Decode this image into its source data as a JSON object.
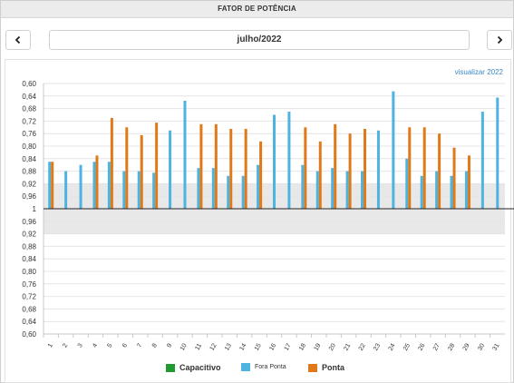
{
  "header": {
    "title": "FATOR DE POTÊNCIA"
  },
  "nav": {
    "month_label": "julho/2022"
  },
  "link": {
    "view_year": "visualizar 2022"
  },
  "colors": {
    "capacitivo": "#1e9a2e",
    "fora_ponta": "#4fb3e0",
    "ponta": "#e07a18",
    "band": "#e8e8e8",
    "grid": "#e4e4e4"
  },
  "legend": [
    {
      "key": "capacitivo",
      "label": "Capacitivo"
    },
    {
      "key": "fora_ponta",
      "label": "Fora Ponta"
    },
    {
      "key": "ponta",
      "label": "Ponta"
    }
  ],
  "chart_data": {
    "type": "bar",
    "y_tick_labels": [
      "0,60",
      "0,64",
      "0,68",
      "0,72",
      "0,76",
      "0,80",
      "0,84",
      "0,88",
      "0,92",
      "0,96",
      "1",
      "0,96",
      "0,92",
      "0,88",
      "0,84",
      "0,80",
      "0,76",
      "0,72",
      "0,68",
      "0,64",
      "0,60"
    ],
    "ylim": [
      0.6,
      1.0
    ],
    "reference_band": [
      0.92,
      1.0
    ],
    "legend_placement": "bottom",
    "categories": [
      "1",
      "2",
      "3",
      "4",
      "5",
      "6",
      "7",
      "8",
      "9",
      "10",
      "11",
      "12",
      "13",
      "14",
      "15",
      "16",
      "17",
      "18",
      "19",
      "20",
      "21",
      "22",
      "23",
      "24",
      "25",
      "26",
      "27",
      "28",
      "29",
      "30",
      "31"
    ],
    "series": [
      {
        "name": "Capacitivo",
        "key": "capacitivo",
        "values": [
          null,
          null,
          null,
          null,
          null,
          null,
          null,
          null,
          null,
          null,
          null,
          null,
          null,
          null,
          null,
          null,
          null,
          null,
          null,
          null,
          null,
          null,
          null,
          null,
          null,
          null,
          null,
          null,
          null,
          null,
          null
        ]
      },
      {
        "name": "Fora Ponta",
        "key": "fora_ponta",
        "values": [
          0.85,
          0.88,
          0.86,
          0.85,
          0.85,
          0.88,
          0.88,
          0.885,
          0.75,
          0.655,
          0.87,
          0.87,
          0.895,
          0.895,
          0.86,
          0.7,
          0.69,
          0.86,
          0.88,
          0.87,
          0.88,
          0.88,
          0.75,
          0.625,
          0.84,
          0.895,
          0.88,
          0.895,
          0.88,
          0.69,
          0.645
        ]
      },
      {
        "name": "Ponta",
        "key": "ponta",
        "values": [
          0.85,
          null,
          null,
          0.83,
          0.71,
          0.74,
          0.765,
          0.725,
          null,
          null,
          0.73,
          0.73,
          0.745,
          0.745,
          0.785,
          null,
          null,
          0.74,
          0.785,
          0.73,
          0.76,
          0.745,
          null,
          null,
          0.74,
          0.74,
          0.76,
          0.805,
          0.83,
          null,
          null
        ]
      }
    ]
  }
}
